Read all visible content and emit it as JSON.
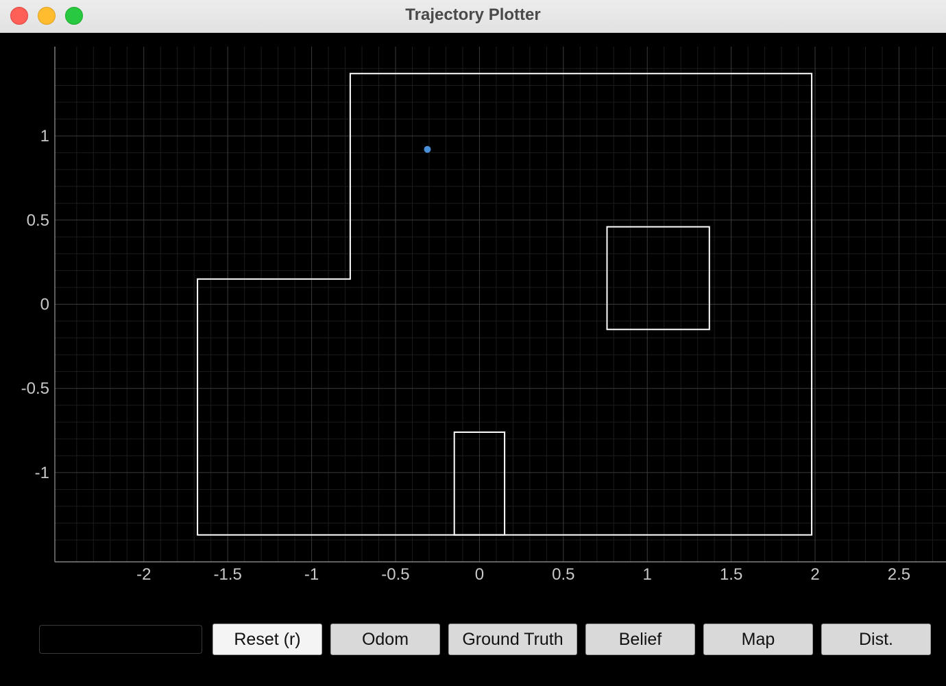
{
  "window": {
    "title": "Trajectory Plotter"
  },
  "plot": {
    "x_ticks": [
      "-2",
      "-1.5",
      "-1",
      "-0.5",
      "0",
      "0.5",
      "1",
      "1.5",
      "2",
      "2.5"
    ],
    "y_ticks": [
      "1",
      "0.5",
      "0",
      "-0.5",
      "-1"
    ],
    "x_range": [
      -2.53,
      2.78
    ],
    "y_range": [
      -1.53,
      1.53
    ],
    "map_outline": [
      [
        -1.68,
        0.15
      ],
      [
        -0.77,
        0.15
      ],
      [
        -0.77,
        1.37
      ],
      [
        1.98,
        1.37
      ],
      [
        1.98,
        -1.37
      ],
      [
        -1.68,
        -1.37
      ]
    ],
    "obstacles": [
      {
        "name": "square-obstacle",
        "points": [
          [
            0.76,
            0.46
          ],
          [
            1.37,
            0.46
          ],
          [
            1.37,
            -0.15
          ],
          [
            0.76,
            -0.15
          ]
        ]
      },
      {
        "name": "door-obstacle",
        "points": [
          [
            -0.15,
            -1.37
          ],
          [
            -0.15,
            -0.76
          ],
          [
            0.15,
            -0.76
          ],
          [
            0.15,
            -1.37
          ]
        ]
      }
    ],
    "robot_point": {
      "x": -0.31,
      "y": 0.92
    },
    "colors": {
      "map": "#ffffff",
      "point": "#4a90d9",
      "grid_major": "#3c3c3c",
      "grid_minor": "#1c1c1c"
    }
  },
  "controls": {
    "status_text": "",
    "reset_label": "Reset (r)",
    "odom_label": "Odom",
    "ground_truth_label": "Ground Truth",
    "belief_label": "Belief",
    "map_label": "Map",
    "dist_label": "Dist."
  }
}
